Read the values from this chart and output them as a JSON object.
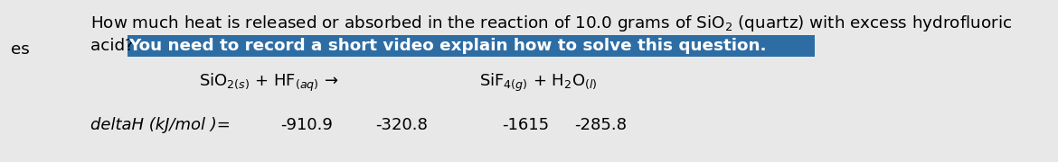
{
  "bg_color": "#e8e8e8",
  "highlight_color": "#2e6da4",
  "highlight_text_color": "#ffffff",
  "text_color": "#000000",
  "left_label": "es",
  "line1": "How much heat is released or absorbed in the reaction of 10.0 grams of SiO$_2$ (quartz) with excess hydrofluoric",
  "line2_plain": "acid? ",
  "line2_highlight": "You need to record a short video explain how to solve this question.",
  "eq_left": "SiO$_{2(s)}$ + HF$_{(aq)}$ →",
  "eq_right": "SiF$_{4(g)}$ + H$_2$O$_{(l)}$",
  "deltah_label": "deltaH (kJ/mol )= ",
  "dh_sio2": "-910.9",
  "dh_hf": "-320.8",
  "dh_sif4": "-1615",
  "dh_h2o": "-285.8",
  "main_fontsize": 13.2,
  "eq_fontsize": 13.0,
  "label_fontsize": 13.0
}
